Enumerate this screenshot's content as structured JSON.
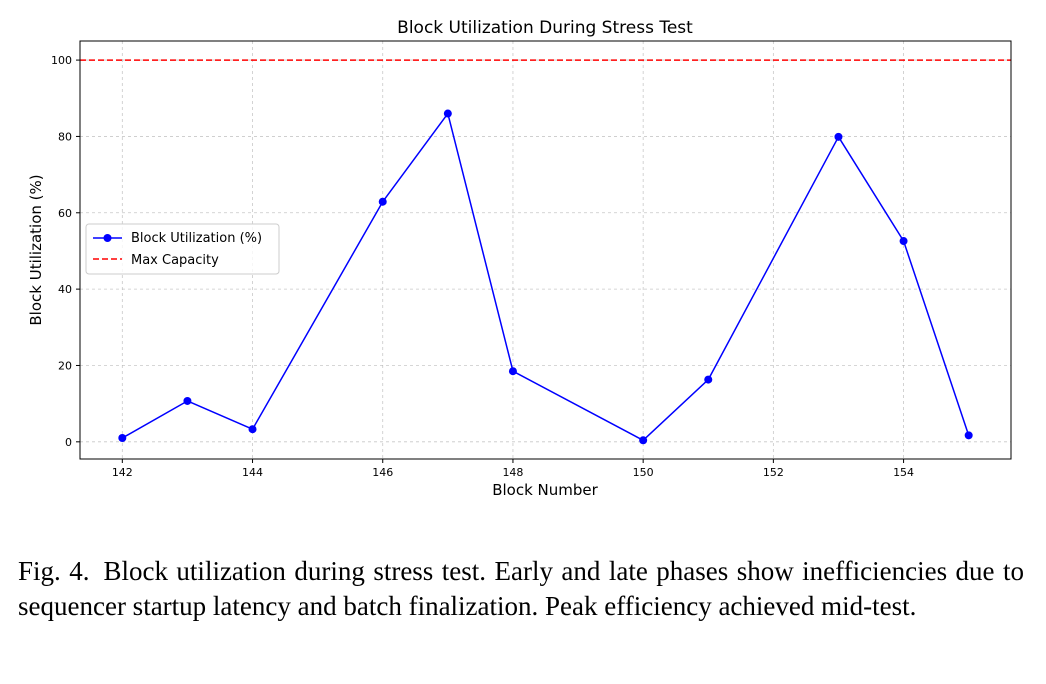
{
  "chart_data": {
    "type": "line",
    "title": "Block Utilization During Stress Test",
    "xlabel": "Block Number",
    "ylabel": "Block Utilization (%)",
    "xlim": [
      141.35,
      155.65
    ],
    "ylim": [
      -4.5,
      105
    ],
    "xticks": [
      142,
      144,
      146,
      148,
      150,
      152,
      154
    ],
    "yticks": [
      0,
      20,
      40,
      60,
      80,
      100
    ],
    "grid": true,
    "legend_position": "center-left",
    "series": [
      {
        "name": "Block Utilization (%)",
        "color": "#0000ff",
        "marker": "circle",
        "x": [
          142,
          143,
          144,
          146,
          147,
          148,
          150,
          151,
          153,
          154,
          155
        ],
        "y": [
          1.0,
          10.7,
          3.3,
          62.9,
          86.0,
          18.5,
          0.4,
          16.3,
          79.9,
          52.6,
          1.7
        ]
      },
      {
        "name": "Max Capacity",
        "color": "#ff0000",
        "style": "dashed",
        "y_constant": 100
      }
    ]
  },
  "caption": {
    "label": "Fig. 4.",
    "text": "Block utilization during stress test. Early and late phases show inefficiencies due to sequencer startup latency and batch finalization. Peak efficiency achieved mid-test."
  }
}
